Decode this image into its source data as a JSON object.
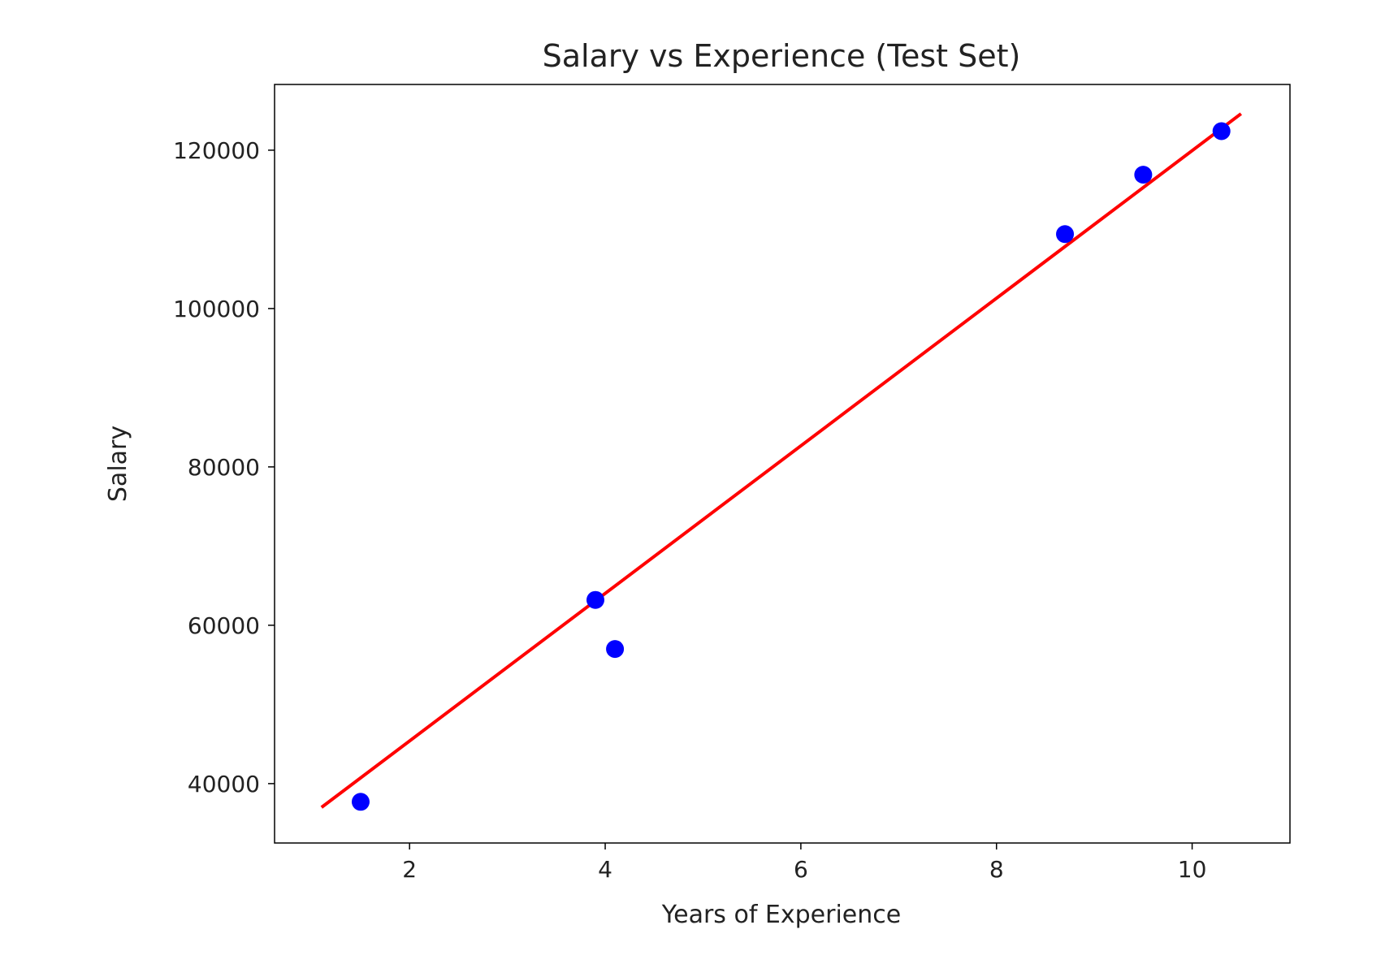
{
  "chart_data": {
    "type": "scatter",
    "title": "Salary vs Experience (Test Set)",
    "xlabel": "Years of Experience",
    "ylabel": "Salary",
    "xlim": [
      0.62,
      11.0
    ],
    "ylim": [
      32500,
      128300
    ],
    "xticks": [
      2,
      4,
      6,
      8,
      10
    ],
    "yticks": [
      40000,
      60000,
      80000,
      100000,
      120000
    ],
    "grid": false,
    "legend": "none",
    "scatter_series": {
      "color": "#0000ff",
      "x": [
        1.5,
        3.9,
        4.1,
        8.7,
        9.5,
        10.3
      ],
      "y": [
        37700,
        63200,
        57000,
        109400,
        116900,
        122400
      ]
    },
    "line_series": {
      "color": "#ff0000",
      "x": [
        1.1,
        10.5
      ],
      "y": [
        37000,
        124600
      ]
    }
  }
}
